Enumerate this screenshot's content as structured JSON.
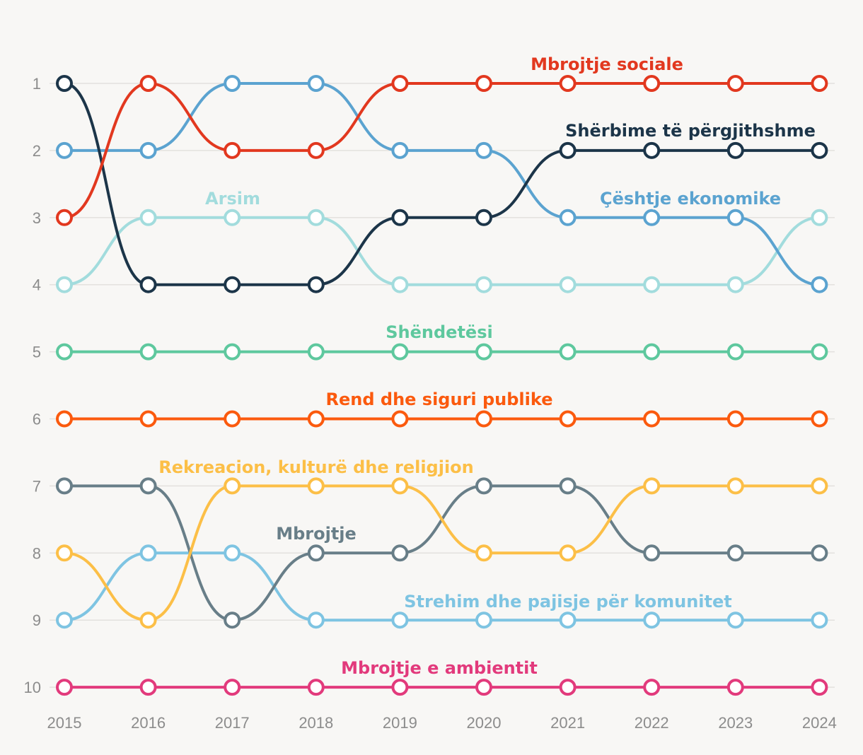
{
  "chart_data": {
    "type": "line",
    "title": "",
    "xlabel": "",
    "ylabel": "",
    "x": [
      "2015",
      "2016",
      "2017",
      "2018",
      "2019",
      "2020",
      "2021",
      "2022",
      "2023",
      "2024"
    ],
    "y_ticks": [
      "1",
      "2",
      "3",
      "4",
      "5",
      "6",
      "7",
      "8",
      "9",
      "10"
    ],
    "ylim": [
      1,
      10
    ],
    "y_inverted": true,
    "grid": true,
    "legend": "inline labels",
    "series": [
      {
        "name": "Mbrojtje sociale",
        "color": "#e2381f",
        "values": [
          3,
          1,
          2,
          2,
          1,
          1,
          1,
          1,
          1,
          1
        ]
      },
      {
        "name": "Shërbime të përgjithshme",
        "color": "#1c3549",
        "values": [
          1,
          4,
          4,
          4,
          3,
          3,
          2,
          2,
          2,
          2
        ]
      },
      {
        "name": "Çështje ekonomike",
        "color": "#5ba3d0",
        "values": [
          2,
          2,
          1,
          1,
          2,
          2,
          3,
          3,
          3,
          4
        ]
      },
      {
        "name": "Arsim",
        "color": "#a2dcdd",
        "values": [
          4,
          3,
          3,
          3,
          4,
          4,
          4,
          4,
          4,
          3
        ]
      },
      {
        "name": "Shëndetësi",
        "color": "#5ec89e",
        "values": [
          5,
          5,
          5,
          5,
          5,
          5,
          5,
          5,
          5,
          5
        ]
      },
      {
        "name": "Rend dhe siguri publike",
        "color": "#fb5a0e",
        "values": [
          6,
          6,
          6,
          6,
          6,
          6,
          6,
          6,
          6,
          6
        ]
      },
      {
        "name": "Rekreacion, kulturë dhe religjion",
        "color": "#fcbf47",
        "values": [
          8,
          9,
          7,
          7,
          7,
          8,
          8,
          7,
          7,
          7
        ]
      },
      {
        "name": "Mbrojtje",
        "color": "#687e88",
        "values": [
          7,
          7,
          9,
          8,
          8,
          7,
          7,
          8,
          8,
          8
        ]
      },
      {
        "name": "Strehim dhe pajisje për komunitet",
        "color": "#7ec4e2",
        "values": [
          9,
          8,
          8,
          9,
          9,
          9,
          9,
          9,
          9,
          9
        ]
      },
      {
        "name": "Mbrojtje e ambientit",
        "color": "#e23a7c",
        "values": [
          10,
          10,
          10,
          10,
          10,
          10,
          10,
          10,
          10,
          10
        ]
      }
    ]
  }
}
